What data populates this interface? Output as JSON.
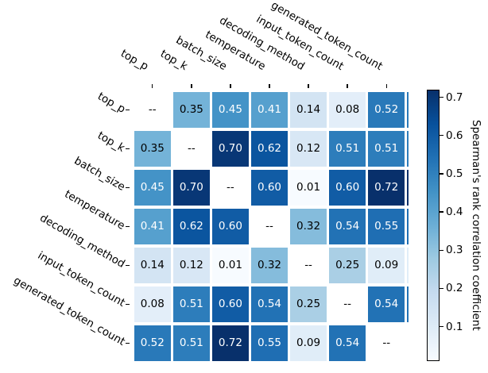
{
  "figure": {
    "background": "#ffffff",
    "kind": "correlation-heatmap"
  },
  "chart_data": {
    "type": "heatmap",
    "title": "",
    "categories": [
      "top_p",
      "top_k",
      "batch_size",
      "temperature",
      "decoding_method",
      "input_token_count",
      "generated_token_count"
    ],
    "matrix": [
      [
        null,
        0.35,
        0.45,
        0.41,
        0.14,
        0.08,
        0.52
      ],
      [
        0.35,
        null,
        0.7,
        0.62,
        0.12,
        0.51,
        0.51
      ],
      [
        0.45,
        0.7,
        null,
        0.6,
        0.01,
        0.6,
        0.72
      ],
      [
        0.41,
        0.62,
        0.6,
        null,
        0.32,
        0.54,
        0.55
      ],
      [
        0.14,
        0.12,
        0.01,
        0.32,
        null,
        0.25,
        0.09
      ],
      [
        0.08,
        0.51,
        0.6,
        0.54,
        0.25,
        null,
        0.54
      ],
      [
        0.52,
        0.51,
        0.72,
        0.55,
        0.09,
        0.54,
        null
      ]
    ],
    "null_display": "--",
    "value_format_decimals": 2,
    "vmin": 0.01,
    "vmax": 0.72,
    "colormap": "Blues",
    "colormap_stops": [
      "#f7fbff",
      "#deebf7",
      "#c6dbef",
      "#9ecae1",
      "#6baed6",
      "#4292c6",
      "#2171b5",
      "#08519c",
      "#08306b"
    ],
    "annotation_white_text_threshold": 0.4,
    "annotation_text_colors": {
      "light_cell": "#000000",
      "dark_cell": "#ffffff"
    },
    "grid": false,
    "xlabel": "",
    "ylabel": "",
    "tick_label_rotation_deg": 30,
    "colorbar": {
      "label": "Spearman's rank correlation coefficient",
      "ticks": [
        0.1,
        0.2,
        0.3,
        0.4,
        0.5,
        0.6,
        0.7
      ],
      "position": "right"
    }
  }
}
